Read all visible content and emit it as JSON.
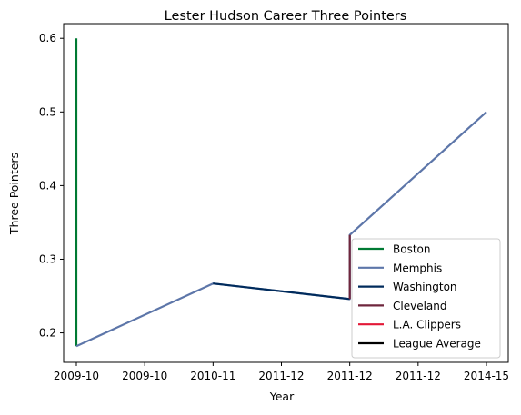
{
  "chart_data": {
    "type": "line",
    "title": "Lester Hudson Career Three Pointers",
    "xlabel": "Year",
    "ylabel": "Three Pointers",
    "x_tick_labels": [
      "2009-10",
      "2009-10",
      "2010-11",
      "2011-12",
      "2011-12",
      "2011-12",
      "2014-15"
    ],
    "ylim": [
      0.16,
      0.62
    ],
    "y_ticks": [
      0.2,
      0.3,
      0.4,
      0.5,
      0.6
    ],
    "y_tick_labels": [
      "0.2",
      "0.3",
      "0.4",
      "0.5",
      "0.6"
    ],
    "grid": false,
    "legend_position": "lower right",
    "series": [
      {
        "name": "Boston",
        "color": "#007A33",
        "points": [
          [
            0,
            0.6
          ],
          [
            0,
            0.182
          ]
        ]
      },
      {
        "name": "Memphis",
        "color": "#5D76A9",
        "points": [
          [
            0,
            0.182
          ],
          [
            2,
            0.267
          ],
          [
            4,
            0.246
          ],
          [
            4,
            0.333
          ],
          [
            6,
            0.5
          ]
        ]
      },
      {
        "name": "Washington",
        "color": "#002B5C",
        "points": [
          [
            2,
            0.267
          ],
          [
            4,
            0.246
          ]
        ]
      },
      {
        "name": "Cleveland",
        "color": "#6F263D",
        "points": [
          [
            4,
            0.246
          ],
          [
            4,
            0.333
          ]
        ]
      },
      {
        "name": "L.A. Clippers",
        "color": "#E31837",
        "points": []
      },
      {
        "name": "League Average",
        "color": "#000000",
        "points": []
      }
    ]
  }
}
